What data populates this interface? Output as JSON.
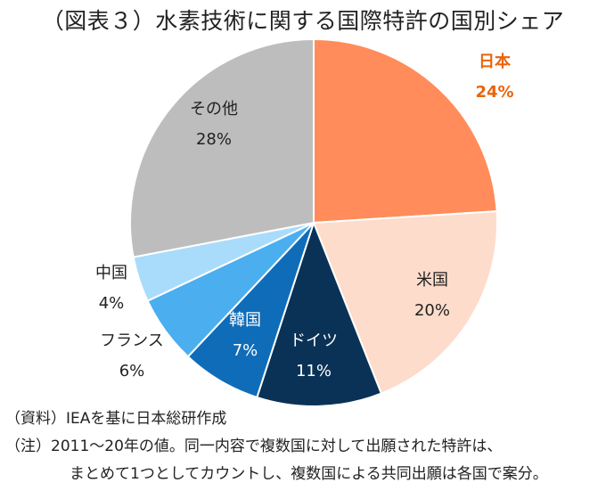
{
  "chart_data": {
    "type": "pie",
    "title": "（図表３）水素技術に関する国際特許の国別シェア",
    "slices": [
      {
        "label": "日本",
        "value": 24,
        "value_label": "24%",
        "color": "#ff8c5a",
        "label_color": "#e8650a",
        "bold": true
      },
      {
        "label": "米国",
        "value": 20,
        "value_label": "20%",
        "color": "#fddccb",
        "label_color": "#222222",
        "bold": false
      },
      {
        "label": "ドイツ",
        "value": 11,
        "value_label": "11%",
        "color": "#0a3256",
        "label_color": "#ffffff",
        "bold": false
      },
      {
        "label": "韓国",
        "value": 7,
        "value_label": "7%",
        "color": "#0f6cb8",
        "label_color": "#ffffff",
        "bold": false
      },
      {
        "label": "フランス",
        "value": 6,
        "value_label": "6%",
        "color": "#4aaeef",
        "label_color": "#222222",
        "bold": false
      },
      {
        "label": "中国",
        "value": 4,
        "value_label": "4%",
        "color": "#a9dcfb",
        "label_color": "#222222",
        "bold": false
      },
      {
        "label": "その他",
        "value": 28,
        "value_label": "28%",
        "color": "#bdbdbd",
        "label_color": "#222222",
        "bold": false
      }
    ]
  },
  "notes": {
    "source": "（資料）IEAを基に日本総研作成",
    "note_line1": "（注）2011～20年の値。同一内容で複数国に対して出願された特許は、",
    "note_line2": "まとめて1つとしてカウントし、複数国による共同出願は各国で案分。"
  }
}
